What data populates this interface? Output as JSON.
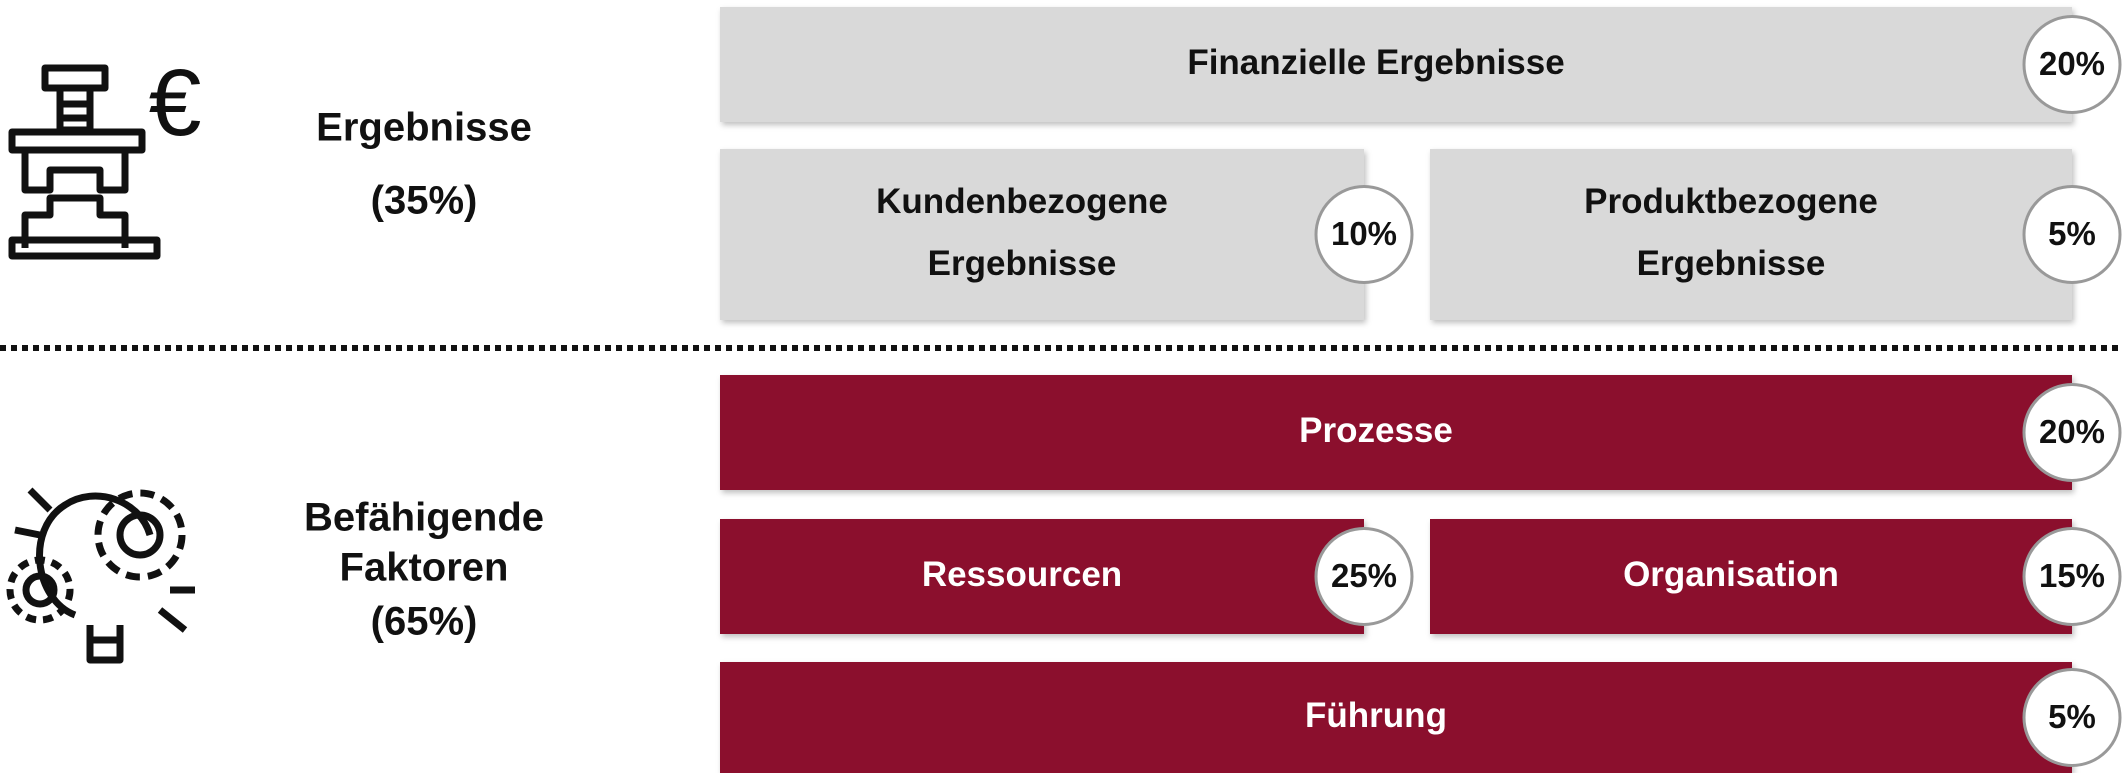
{
  "groups": [
    {
      "label": [
        "Ergebnisse",
        "(35%)"
      ],
      "boxes": [
        {
          "label": [
            "Finanzielle Ergebnisse"
          ],
          "weight": "20%"
        },
        {
          "label": [
            "Kundenbezogene",
            "Ergebnisse"
          ],
          "weight": "10%"
        },
        {
          "label": [
            "Produktbezogene",
            "Ergebnisse"
          ],
          "weight": "5%"
        }
      ]
    },
    {
      "label": [
        "Befähigende",
        "Faktoren",
        "(65%)"
      ],
      "boxes": [
        {
          "label": [
            "Prozesse"
          ],
          "weight": "20%"
        },
        {
          "label": [
            "Ressourcen"
          ],
          "weight": "25%"
        },
        {
          "label": [
            "Organisation"
          ],
          "weight": "15%"
        },
        {
          "label": [
            "Führung"
          ],
          "weight": "5%"
        }
      ]
    }
  ]
}
